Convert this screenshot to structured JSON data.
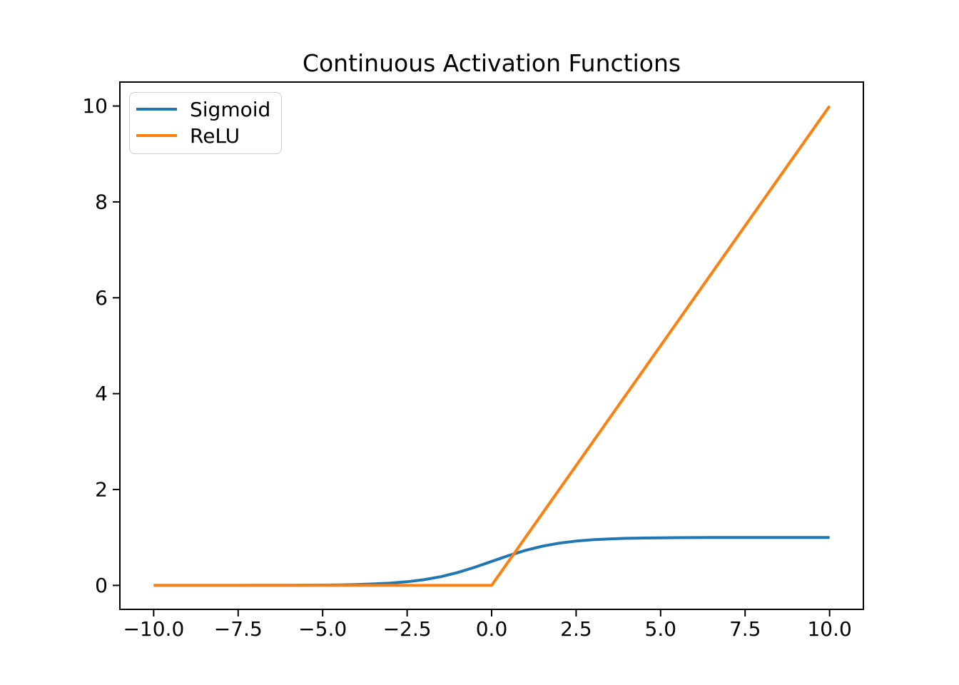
{
  "figure": {
    "background": "#ffffff",
    "axis_color": "#000000"
  },
  "chart_data": {
    "type": "line",
    "title": "Continuous Activation Functions",
    "xlabel": "",
    "ylabel": "",
    "xlim": [
      -11,
      11
    ],
    "ylim": [
      -0.5,
      10.5
    ],
    "grid": false,
    "legend": {
      "position": "upper left",
      "border_color": "#cccccc",
      "background": "#ffffff"
    },
    "xtick_values": [
      -10,
      -7.5,
      -5,
      -2.5,
      0,
      2.5,
      5,
      7.5,
      10
    ],
    "xtick_labels": [
      "−10.0",
      "−7.5",
      "−5.0",
      "−2.5",
      "0.0",
      "2.5",
      "5.0",
      "7.5",
      "10.0"
    ],
    "ytick_values": [
      0,
      2,
      4,
      6,
      8,
      10
    ],
    "ytick_labels": [
      "0",
      "2",
      "4",
      "6",
      "8",
      "10"
    ],
    "series": [
      {
        "name": "Sigmoid",
        "color": "#1f77b4",
        "x": [
          -10,
          -9.5,
          -9,
          -8.5,
          -8,
          -7.5,
          -7,
          -6.5,
          -6,
          -5.5,
          -5,
          -4.5,
          -4,
          -3.5,
          -3,
          -2.5,
          -2,
          -1.5,
          -1,
          -0.5,
          0,
          0.5,
          1,
          1.5,
          2,
          2.5,
          3,
          3.5,
          4,
          4.5,
          5,
          5.5,
          6,
          6.5,
          7,
          7.5,
          8,
          8.5,
          9,
          9.5,
          10
        ],
        "y": [
          0.0,
          0.0001,
          0.0001,
          0.0002,
          0.0003,
          0.0006,
          0.0009,
          0.0015,
          0.0025,
          0.0041,
          0.0067,
          0.011,
          0.018,
          0.0293,
          0.0474,
          0.0759,
          0.1192,
          0.1824,
          0.2689,
          0.3775,
          0.5,
          0.6225,
          0.7311,
          0.8176,
          0.8808,
          0.9241,
          0.9526,
          0.9707,
          0.982,
          0.989,
          0.9933,
          0.9959,
          0.9975,
          0.9985,
          0.9991,
          0.9994,
          0.9997,
          0.9998,
          0.9999,
          0.9999,
          1.0
        ]
      },
      {
        "name": "ReLU",
        "color": "#ff7f0e",
        "x": [
          -10,
          -7.5,
          -5,
          -2.5,
          0,
          2.5,
          5,
          7.5,
          10
        ],
        "y": [
          0,
          0,
          0,
          0,
          0,
          2.5,
          5,
          7.5,
          10
        ]
      }
    ]
  }
}
